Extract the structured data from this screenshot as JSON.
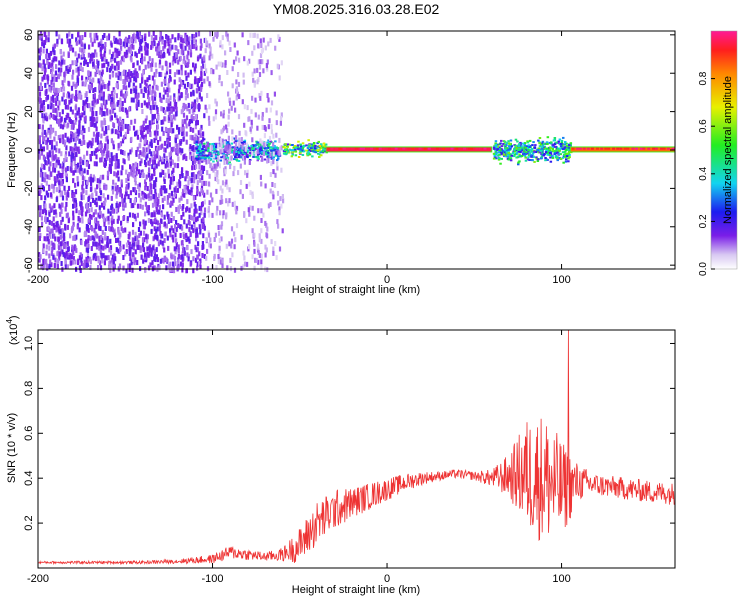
{
  "chart_data": [
    {
      "type": "heatmap",
      "title": "YM08.2025.316.03.28.E02",
      "xlabel": "Height of straight line (km)",
      "ylabel": "Frequency (Hz)",
      "xlim": [
        -200,
        165
      ],
      "ylim": [
        -62,
        62
      ],
      "xticks": [
        -200,
        -100,
        0,
        100
      ],
      "yticks": [
        -60,
        -40,
        -20,
        0,
        20,
        40,
        60
      ],
      "colorbar": {
        "label": "Normalized spectral amplitude",
        "range": [
          0,
          1
        ],
        "ticks": [
          "0.0",
          "0.2",
          "0.4",
          "0.6",
          "0.8"
        ],
        "tick_values": [
          0,
          0.2,
          0.4,
          0.6,
          0.8
        ]
      },
      "regions": [
        {
          "x": [
            -200,
            -105
          ],
          "y": [
            -62,
            62
          ],
          "amplitude": 0.15,
          "pattern": "broadband noise"
        },
        {
          "x": [
            -110,
            -62
          ],
          "y": [
            -8,
            8
          ],
          "amplitude": 0.4,
          "pattern": "band"
        },
        {
          "x": [
            -105,
            -60
          ],
          "y": [
            -62,
            62
          ],
          "amplitude": 0.05,
          "pattern": "faint noise"
        },
        {
          "x": [
            -60,
            -35
          ],
          "y": [
            -4,
            6
          ],
          "amplitude": 0.6,
          "pattern": "band"
        },
        {
          "x": [
            -35,
            60
          ],
          "y": [
            -1,
            2
          ],
          "amplitude": 0.95,
          "pattern": "narrow line"
        },
        {
          "x": [
            60,
            105
          ],
          "y": [
            -8,
            8
          ],
          "amplitude": 0.5,
          "pattern": "band"
        },
        {
          "x": [
            105,
            165
          ],
          "y": [
            -2,
            3
          ],
          "amplitude": 0.85,
          "pattern": "narrow line"
        }
      ]
    },
    {
      "type": "line",
      "title": "",
      "xlabel": "Height of straight line (km)",
      "ylabel": "SNR (10 * v/v)",
      "y_scale_note": "(x10",
      "y_scale_exp": "4",
      "y_scale_close": ")",
      "xlim": [
        -200,
        165
      ],
      "ylim": [
        0,
        1.06
      ],
      "xticks": [
        -200,
        -100,
        0,
        100
      ],
      "yticks": [
        "0.2",
        "0.4",
        "0.6",
        "0.8",
        "1.0"
      ],
      "ytick_values": [
        0.2,
        0.4,
        0.6,
        0.8,
        1.0
      ],
      "color": "#ee3333",
      "series": [
        {
          "name": "SNR",
          "x": [
            -200,
            -180,
            -160,
            -140,
            -120,
            -100,
            -90,
            -80,
            -70,
            -60,
            -50,
            -40,
            -30,
            -20,
            -10,
            0,
            10,
            20,
            30,
            40,
            50,
            60,
            70,
            80,
            90,
            100,
            110,
            120,
            130,
            140,
            150,
            165
          ],
          "mean": [
            0.025,
            0.025,
            0.025,
            0.025,
            0.03,
            0.04,
            0.07,
            0.06,
            0.05,
            0.06,
            0.1,
            0.2,
            0.26,
            0.29,
            0.32,
            0.35,
            0.38,
            0.4,
            0.41,
            0.42,
            0.41,
            0.4,
            0.41,
            0.42,
            0.4,
            0.35,
            0.38,
            0.37,
            0.36,
            0.35,
            0.34,
            0.33
          ],
          "spread": [
            0.005,
            0.006,
            0.006,
            0.007,
            0.01,
            0.02,
            0.03,
            0.025,
            0.02,
            0.03,
            0.08,
            0.1,
            0.09,
            0.07,
            0.06,
            0.05,
            0.04,
            0.03,
            0.02,
            0.02,
            0.02,
            0.04,
            0.1,
            0.25,
            0.3,
            0.22,
            0.08,
            0.05,
            0.05,
            0.05,
            0.05,
            0.05
          ],
          "peak": {
            "x": 104,
            "y": 1.06
          }
        }
      ]
    }
  ]
}
